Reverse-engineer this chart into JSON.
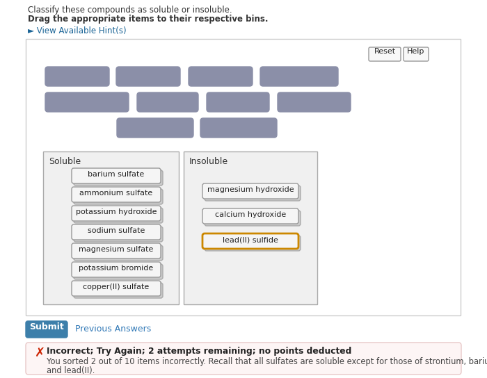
{
  "bg_color": "#ffffff",
  "title_line1": "Classify these compounds as soluble or insoluble.",
  "title_line2": "Drag the appropriate items to their respective bins.",
  "hint_text": "► View Available Hint(s)",
  "hint_color": "#1a6496",
  "reset_btn_text": "Reset",
  "help_btn_text": "Help",
  "drag_gray": "#8b8fa8",
  "soluble_label": "Soluble",
  "insoluble_label": "Insoluble",
  "soluble_items": [
    "barium sulfate",
    "ammonium sulfate",
    "potassium hydroxide",
    "sodium sulfate",
    "magnesium sulfate",
    "potassium bromide",
    "copper(II) sulfate"
  ],
  "insoluble_items": [
    "magnesium hydroxide",
    "calcium hydroxide",
    "lead(II) sulfide"
  ],
  "lead_sulfide_border": "#cc8800",
  "item_box_bg": "#efefef",
  "item_box_border": "#999999",
  "bin_box_bg": "#f0f0f0",
  "submit_btn_text": "Submit",
  "submit_btn_bg": "#3d7faa",
  "submit_btn_text_color": "#ffffff",
  "prev_answers_text": "Previous Answers",
  "prev_answers_color": "#337ab7",
  "error_box_bg": "#fdf5f5",
  "error_box_border": "#e8c8c8",
  "error_icon_color": "#cc2200",
  "error_title": "Incorrect; Try Again; 2 attempts remaining; no points deducted",
  "error_body1": "You sorted 2 out of 10 items incorrectly. Recall that all sulfates are soluble except for those of strontium, barium, silver, mercury(I),",
  "error_body2": "and lead(II)."
}
